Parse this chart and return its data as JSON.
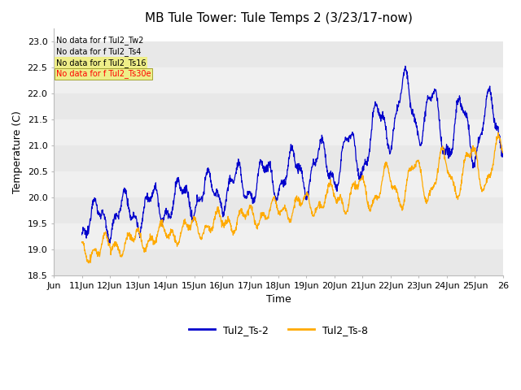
{
  "title": "MB Tule Tower: Tule Temps 2 (3/23/17-now)",
  "xlabel": "Time",
  "ylabel": "Temperature (C)",
  "ylim": [
    18.5,
    23.25
  ],
  "yticks": [
    18.5,
    19.0,
    19.5,
    20.0,
    20.5,
    21.0,
    21.5,
    22.0,
    22.5,
    23.0
  ],
  "xlim_days": [
    0,
    16
  ],
  "xtick_positions": [
    0,
    1,
    2,
    3,
    4,
    5,
    6,
    7,
    8,
    9,
    10,
    11,
    12,
    13,
    14,
    15,
    16
  ],
  "xtick_labels": [
    "Jun",
    "11Jun",
    "12Jun",
    "13Jun",
    "14Jun",
    "15Jun",
    "16Jun",
    "17Jun",
    "18Jun",
    "19Jun",
    "20Jun",
    "21Jun",
    "22Jun",
    "23Jun",
    "24Jun",
    "25Jun",
    "26"
  ],
  "line1_color": "#0000cc",
  "line2_color": "#ffaa00",
  "legend_labels": [
    "Tul2_Ts-2",
    "Tul2_Ts-8"
  ],
  "no_data_texts": [
    "No data for f Tul2_Tw2",
    "No data for f Tul2_Ts4",
    "No data for f Tul2_Ts16",
    "No data for f Tul2_Ts30e"
  ],
  "band_colors": [
    "#e8e8e8",
    "#f0f0f0"
  ],
  "title_fontsize": 11,
  "axis_fontsize": 9,
  "tick_fontsize": 8
}
